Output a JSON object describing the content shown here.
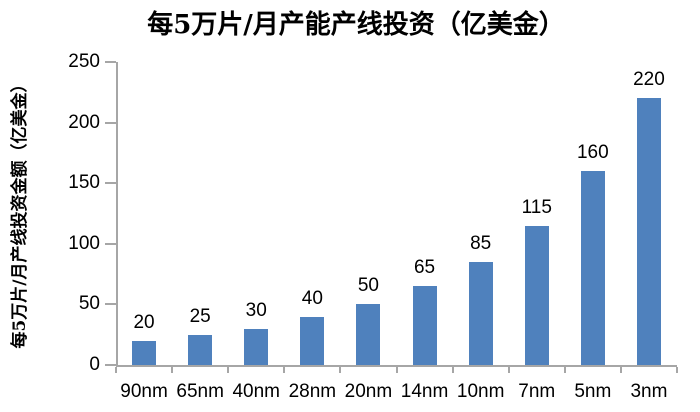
{
  "title": "每5万片/月产能产线投资（亿美金）",
  "y_axis_label": "每5万片/月产线投资金额（亿美金）",
  "chart_data": {
    "type": "bar",
    "title": "每5万片/月产能产线投资（亿美金）",
    "categories": [
      "90nm",
      "65nm",
      "40nm",
      "28nm",
      "20nm",
      "14nm",
      "10nm",
      "7nm",
      "5nm",
      "3nm"
    ],
    "values": [
      20,
      25,
      30,
      40,
      50,
      65,
      85,
      115,
      160,
      220
    ],
    "xlabel": "",
    "ylabel": "每5万片/月产线投资金额（亿美金）",
    "ylim": [
      0,
      250
    ],
    "yticks": [
      0,
      50,
      100,
      150,
      200,
      250
    ],
    "grid": false,
    "legend": "none",
    "data_labels": true,
    "bar_color": "#4F81BD",
    "axis_color": "#A6A6A6",
    "text_color": "#000000",
    "background_color": "#FFFFFF"
  }
}
